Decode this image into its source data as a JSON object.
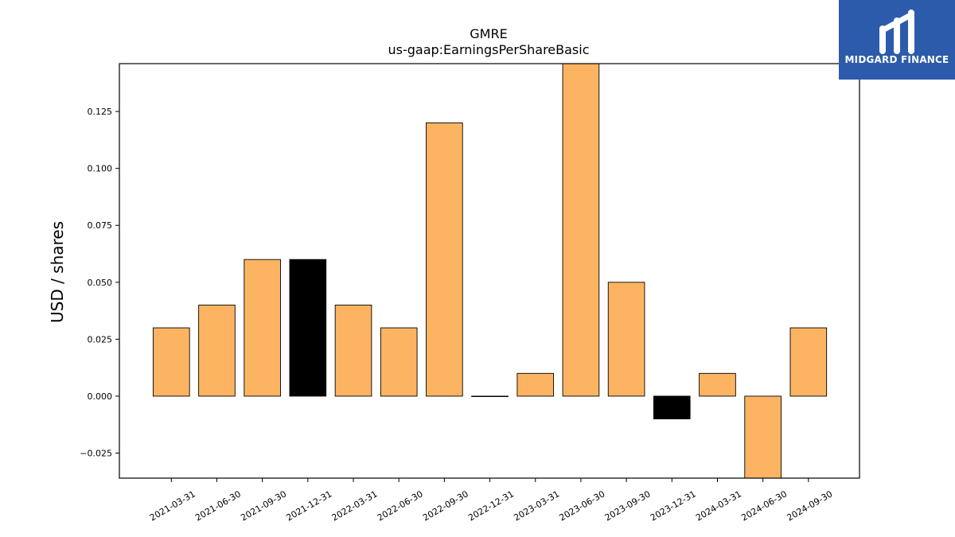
{
  "chart_data": {
    "type": "bar",
    "title": "GMRE",
    "subtitle": "us-gaap:EarningsPerShareBasic",
    "xlabel": "",
    "ylabel": "USD / shares",
    "categories": [
      "2021-03-31",
      "2021-06-30",
      "2021-09-30",
      "2021-12-31",
      "2022-03-31",
      "2022-06-30",
      "2022-09-30",
      "2022-12-31",
      "2023-03-31",
      "2023-06-30",
      "2023-09-30",
      "2023-12-31",
      "2024-03-31",
      "2024-06-30",
      "2024-09-30"
    ],
    "values": [
      0.03,
      0.04,
      0.06,
      0.06,
      0.04,
      0.03,
      0.12,
      0.0,
      0.01,
      0.15,
      0.05,
      -0.01,
      0.01,
      -0.04,
      0.03
    ],
    "highlighted": [
      false,
      false,
      false,
      true,
      false,
      false,
      false,
      false,
      false,
      false,
      false,
      true,
      false,
      false,
      false
    ],
    "colors": {
      "bar": "#fdb462",
      "highlight": "#000000",
      "edge": "#000000"
    },
    "ylim": [
      -0.036,
      0.146
    ],
    "yticks": [
      -0.025,
      0.0,
      0.025,
      0.05,
      0.075,
      0.1,
      0.125
    ],
    "ytick_labels": [
      "−0.025",
      "0.000",
      "0.025",
      "0.050",
      "0.075",
      "0.100",
      "0.125"
    ],
    "grid": false,
    "legend": "none"
  },
  "logo": {
    "text": "MIDGARD FINANCE",
    "background": "#2d5bab"
  }
}
